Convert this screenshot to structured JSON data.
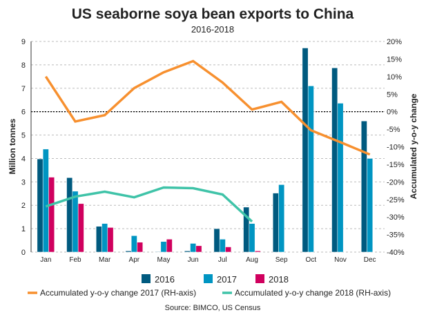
{
  "chart_data": {
    "type": "bar",
    "title": "US seaborne soya bean exports to China",
    "subtitle": "2016-2018",
    "ylabel": "Million tonnes",
    "y2label": "Accumulated y-o-y change",
    "source": "Source: BIMCO, US Census",
    "ylim": [
      0,
      9
    ],
    "y2lim": [
      -40,
      20
    ],
    "yticks": [
      "0",
      "1",
      "2",
      "3",
      "4",
      "5",
      "6",
      "7",
      "8",
      "9"
    ],
    "y2ticks": [
      "-40%",
      "-35%",
      "-30%",
      "-25%",
      "-20%",
      "-15%",
      "-10%",
      "-5%",
      "0%",
      "5%",
      "10%",
      "15%",
      "20%"
    ],
    "categories": [
      "Jan",
      "Feb",
      "Mar",
      "Apr",
      "May",
      "Jun",
      "Jul",
      "Aug",
      "Sep",
      "Oct",
      "Nov",
      "Dec"
    ],
    "series": [
      {
        "name": "2016",
        "type": "bar",
        "color": "#005a7f",
        "values": [
          3.98,
          3.18,
          1.1,
          0.05,
          0.02,
          0.05,
          1.0,
          1.92,
          2.52,
          8.72,
          7.87,
          5.6
        ]
      },
      {
        "name": "2017",
        "type": "bar",
        "color": "#0095c2",
        "values": [
          4.4,
          2.6,
          1.22,
          0.7,
          0.45,
          0.37,
          0.55,
          1.22,
          2.88,
          7.1,
          6.36,
          4.0
        ]
      },
      {
        "name": "2018",
        "type": "bar",
        "color": "#d0005e",
        "values": [
          3.2,
          2.07,
          1.05,
          0.42,
          0.55,
          0.27,
          0.22,
          0.05,
          null,
          null,
          null,
          null
        ]
      },
      {
        "name": "Accumulated y-o-y change 2017 (RH-axis)",
        "type": "line",
        "axis": "right",
        "color": "#f7902f",
        "values": [
          10,
          -2.8,
          -1,
          6.7,
          11.2,
          14.4,
          8.3,
          0.6,
          2.8,
          -5.3,
          -8.7,
          -12.2
        ]
      },
      {
        "name": "Accumulated y-o-y change 2018 (RH-axis)",
        "type": "line",
        "axis": "right",
        "color": "#3fc3a8",
        "values": [
          -27,
          -24.2,
          -22.8,
          -24.4,
          -21.6,
          -21.8,
          -23.6,
          -31.3,
          null,
          null,
          null,
          null
        ]
      }
    ],
    "grid": true,
    "legend": "bottom"
  }
}
